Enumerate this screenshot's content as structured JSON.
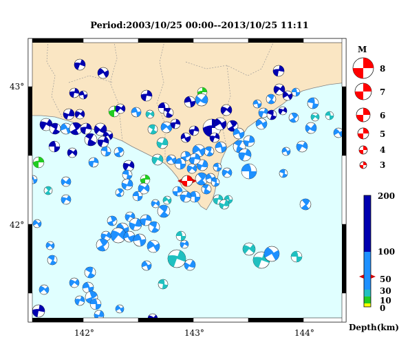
{
  "title": "Period:2003/10/25 00:00--2013/10/25 11:11",
  "lat_labels": [
    "43°",
    "42°"
  ],
  "lon_labels": [
    "142°",
    "143°",
    "144°"
  ],
  "magnitude_legend": {
    "header": "M",
    "labels": [
      "8",
      "7",
      "6",
      "5",
      "4",
      "3"
    ]
  },
  "depth_legend": {
    "labels": [
      "200",
      "100",
      "50",
      "30",
      "10",
      "0"
    ],
    "unit": "Depth(km)",
    "colors": {
      "deep": "#0000b0",
      "mid": "#1e90ff",
      "shallow": "#20c0c0",
      "green": "#22cc22",
      "yellow": "#ffff00"
    }
  },
  "colors": {
    "sea": "#e0ffff",
    "land": "#fae6c3",
    "main_event": "#ff0000"
  }
}
